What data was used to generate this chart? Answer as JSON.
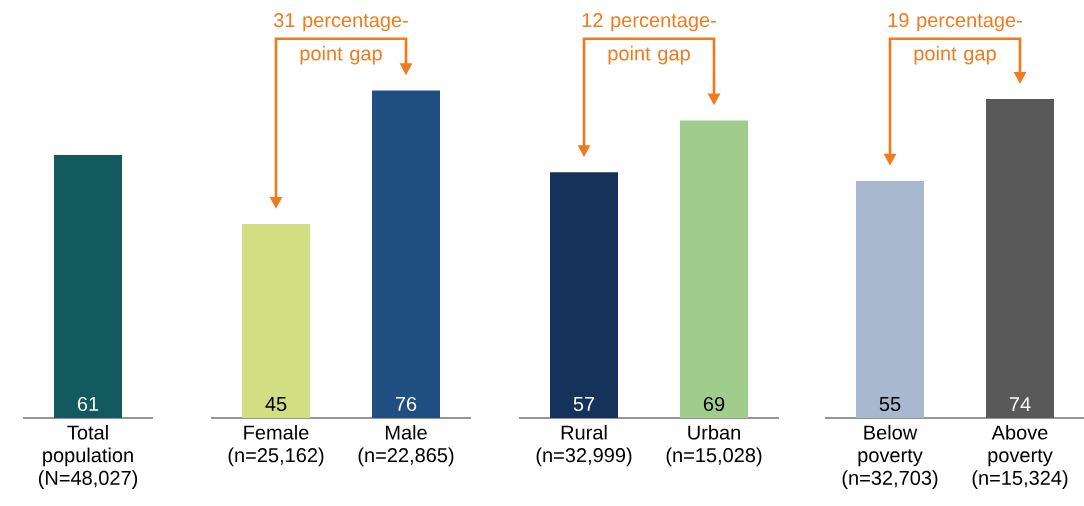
{
  "chart_data": [
    {
      "type": "bar",
      "categories": [
        "Total population (N=48,027)"
      ],
      "values": [
        61
      ],
      "colors": [
        "#135a5f"
      ],
      "data_labels": true,
      "tick_labels": "x"
    },
    {
      "type": "bar",
      "categories": [
        "Female (n=25,162)",
        "Male (n=22,865)"
      ],
      "values": [
        45,
        76
      ],
      "colors": [
        "#d2de82",
        "#1f4e80"
      ],
      "data_labels": true,
      "tick_labels": "x",
      "annotations": [
        "31 percentage-point gap"
      ]
    },
    {
      "type": "bar",
      "categories": [
        "Rural (n=32,999)",
        "Urban (n=15,028)"
      ],
      "values": [
        57,
        69
      ],
      "colors": [
        "#15335a",
        "#a0cc8c"
      ],
      "data_labels": true,
      "tick_labels": "x",
      "annotations": [
        "12 percentage-point gap"
      ]
    },
    {
      "type": "bar",
      "categories": [
        "Below poverty (n=32,703)",
        "Above poverty (n=15,324)"
      ],
      "values": [
        55,
        74
      ],
      "colors": [
        "#a7b8cf",
        "#595959"
      ],
      "data_labels": true,
      "tick_labels": "x",
      "annotations": [
        "19 percentage-point gap"
      ]
    }
  ]
}
